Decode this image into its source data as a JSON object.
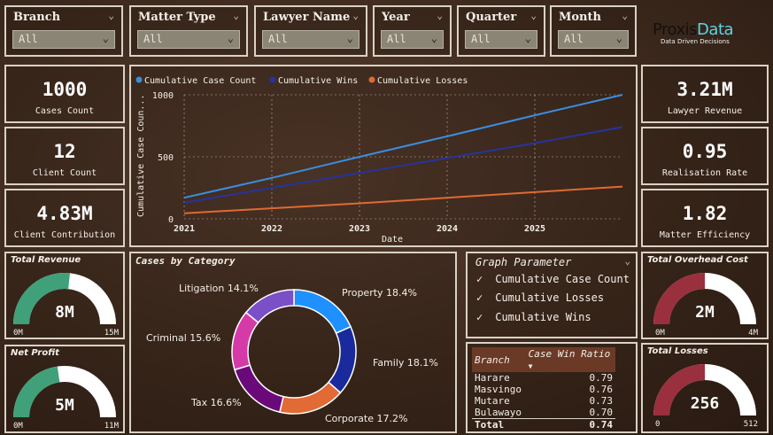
{
  "slicers": [
    {
      "title": "Branch",
      "value": "All"
    },
    {
      "title": "Matter Type",
      "value": "All"
    },
    {
      "title": "Lawyer Name",
      "value": "All"
    },
    {
      "title": "Year",
      "value": "All"
    },
    {
      "title": "Quarter",
      "value": "All"
    },
    {
      "title": "Month",
      "value": "All"
    }
  ],
  "logo": {
    "name_part1": "Proxis",
    "name_part2": "Data",
    "tagline": "Data Driven Decisions"
  },
  "kpis_left": [
    {
      "value": "1000",
      "label": "Cases Count"
    },
    {
      "value": "12",
      "label": "Client Count"
    },
    {
      "value": "4.83M",
      "label": "Client Contribution"
    }
  ],
  "kpis_right": [
    {
      "value": "3.21M",
      "label": "Lawyer Revenue"
    },
    {
      "value": "0.95",
      "label": "Realisation Rate"
    },
    {
      "value": "1.82",
      "label": "Matter Efficiency"
    }
  ],
  "gauges": {
    "total_revenue": {
      "title": "Total Revenue",
      "value": "8M",
      "min": "0M",
      "max": "15M",
      "fill": 0.533,
      "color": "#3fa07a"
    },
    "net_profit": {
      "title": "Net Profit",
      "value": "5M",
      "min": "0M",
      "max": "11M",
      "fill": 0.455,
      "color": "#3fa07a"
    },
    "total_overhead": {
      "title": "Total Overhead Cost",
      "value": "2M",
      "min": "0M",
      "max": "4M",
      "fill": 0.5,
      "color": "#9a2f3d"
    },
    "total_losses": {
      "title": "Total Losses",
      "value": "256",
      "min": "0",
      "max": "512",
      "fill": 0.5,
      "color": "#9a2f3d"
    }
  },
  "line_chart": {
    "legend": [
      "Cumulative Case Count",
      "Cumulative Wins",
      "Cumulative Losses"
    ],
    "xlabel": "Date",
    "ylabel": "Cumulative Case Coun..."
  },
  "donut": {
    "title": "Cases by Category",
    "labels": [
      "Property 18.4%",
      "Family 18.1%",
      "Corporate 17.2%",
      "Tax 16.6%",
      "Criminal 15.6%",
      "Litigation 14.1%"
    ]
  },
  "graph_param": {
    "title": "Graph Parameter",
    "options": [
      {
        "label": "Cumulative Case Count",
        "checked": true
      },
      {
        "label": "Cumulative Losses",
        "checked": true
      },
      {
        "label": "Cumulative Wins",
        "checked": true
      }
    ]
  },
  "win_table": {
    "headers": [
      "Branch",
      "Case Win Ratio"
    ],
    "rows": [
      [
        "Harare",
        "0.79"
      ],
      [
        "Masvingo",
        "0.76"
      ],
      [
        "Mutare",
        "0.73"
      ],
      [
        "Bulawayo",
        "0.70"
      ]
    ],
    "total": [
      "Total",
      "0.74"
    ]
  },
  "chart_data": [
    {
      "type": "line",
      "x": [
        "2021",
        "2022",
        "2023",
        "2024",
        "2025",
        "2026"
      ],
      "xlim": [
        "2021",
        "2026"
      ],
      "series": [
        {
          "name": "Cumulative Case Count",
          "color": "#3a8ee0",
          "values": [
            170,
            330,
            500,
            665,
            835,
            1000
          ]
        },
        {
          "name": "Cumulative Wins",
          "color": "#2633a0",
          "values": [
            130,
            250,
            370,
            490,
            610,
            740
          ]
        },
        {
          "name": "Cumulative Losses",
          "color": "#e06a32",
          "values": [
            45,
            85,
            125,
            170,
            215,
            260
          ]
        }
      ],
      "yticks": [
        0,
        500,
        1000
      ],
      "xticks": [
        "2021",
        "2022",
        "2023",
        "2024",
        "2025"
      ],
      "ylim": [
        0,
        1000
      ],
      "xlabel": "Date",
      "ylabel": "Cumulative Case Coun...",
      "grid": true,
      "legend": "top"
    },
    {
      "type": "pie",
      "categories": [
        "Property",
        "Family",
        "Corporate",
        "Tax",
        "Criminal",
        "Litigation"
      ],
      "values": [
        18.4,
        18.1,
        17.2,
        16.6,
        15.6,
        14.1
      ],
      "colors": [
        "#1e90ff",
        "#1a2a9c",
        "#e26a35",
        "#6a0a7a",
        "#d63aa8",
        "#7a4fc8"
      ],
      "title": "Cases by Category"
    }
  ]
}
